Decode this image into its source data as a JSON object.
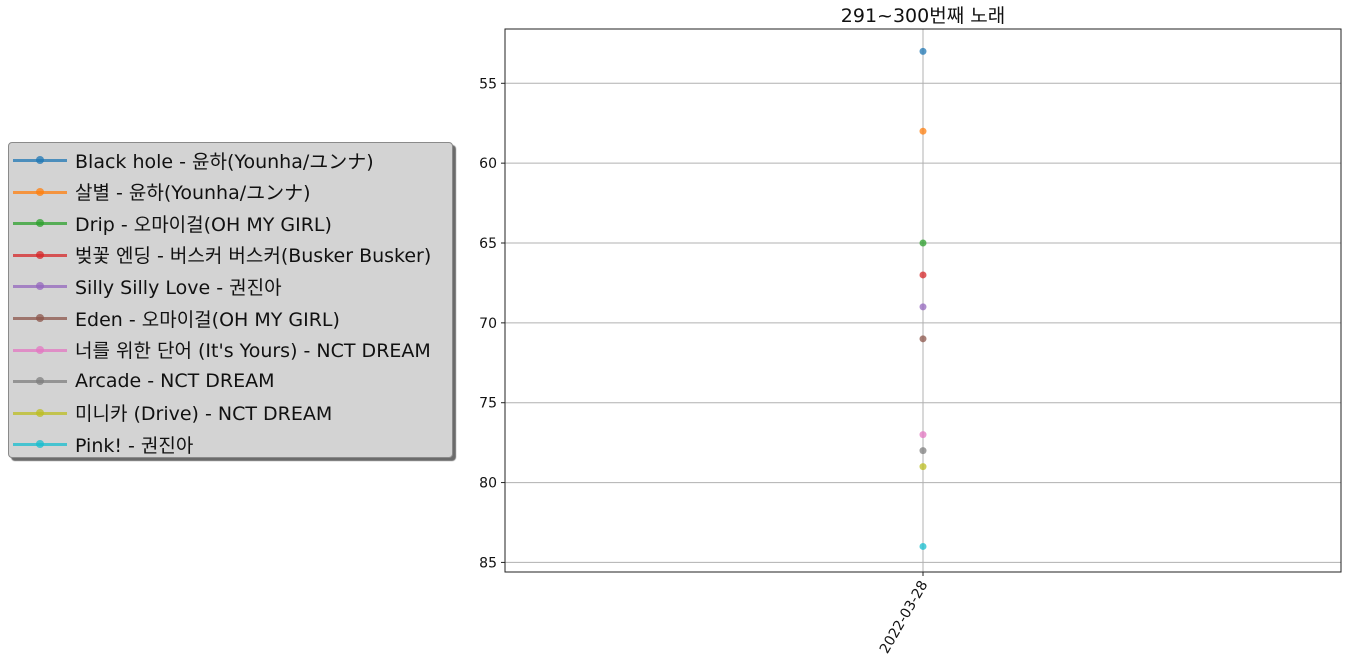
{
  "chart_data": {
    "type": "line",
    "title": "291~300번째 노래",
    "xlabel": "",
    "ylabel": "",
    "x": [
      "2022-03-28"
    ],
    "ylim": [
      51.6,
      85.6
    ],
    "y_inverted": true,
    "yticks": [
      55,
      60,
      65,
      70,
      75,
      80,
      85
    ],
    "grid": true,
    "legend_placement": "center-left, outside plot",
    "series": [
      {
        "name": "Black hole - 윤하(Younha/ユンナ)",
        "values": [
          53
        ],
        "color": "#1f77b4"
      },
      {
        "name": "살별 - 윤하(Younha/ユンナ)",
        "values": [
          58
        ],
        "color": "#ff7f0e"
      },
      {
        "name": "Drip - 오마이걸(OH MY GIRL)",
        "values": [
          65
        ],
        "color": "#2ca02c"
      },
      {
        "name": "벚꽃 엔딩 - 버스커 버스커(Busker Busker)",
        "values": [
          67
        ],
        "color": "#d62728"
      },
      {
        "name": "Silly Silly Love - 권진아",
        "values": [
          69
        ],
        "color": "#9467bd"
      },
      {
        "name": "Eden - 오마이걸(OH MY GIRL)",
        "values": [
          71
        ],
        "color": "#8c564b"
      },
      {
        "name": "너를 위한 단어 (It's Yours) - NCT DREAM",
        "values": [
          77
        ],
        "color": "#e377c2"
      },
      {
        "name": "Arcade - NCT DREAM",
        "values": [
          78
        ],
        "color": "#7f7f7f"
      },
      {
        "name": "미니카 (Drive) - NCT DREAM",
        "values": [
          79
        ],
        "color": "#bcbd22"
      },
      {
        "name": "Pink! - 권진아",
        "values": [
          84
        ],
        "color": "#17becf"
      }
    ]
  }
}
